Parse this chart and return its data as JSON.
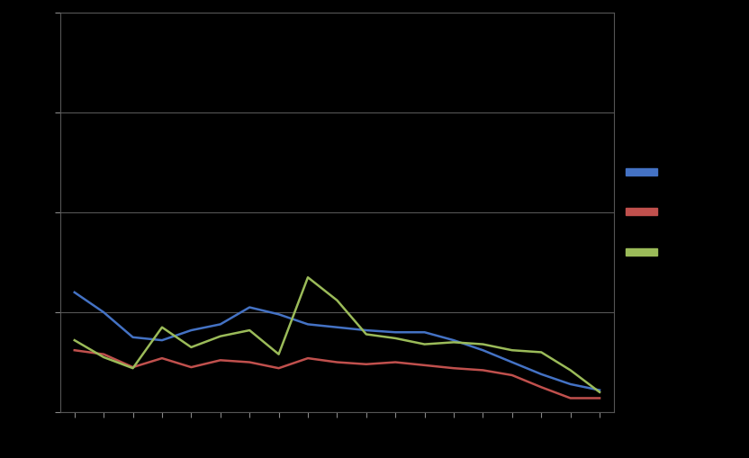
{
  "background_color": "#000000",
  "plot_bg_color": "#000000",
  "grid_color": "#555555",
  "line_blue": [
    1.2,
    1.0,
    0.75,
    0.72,
    0.82,
    0.88,
    1.05,
    0.98,
    0.88,
    0.85,
    0.82,
    0.8,
    0.8,
    0.72,
    0.62,
    0.5,
    0.38,
    0.28,
    0.22
  ],
  "line_red": [
    0.62,
    0.58,
    0.45,
    0.54,
    0.45,
    0.52,
    0.5,
    0.44,
    0.54,
    0.5,
    0.48,
    0.5,
    0.47,
    0.44,
    0.42,
    0.37,
    0.25,
    0.14,
    0.14
  ],
  "line_green": [
    0.72,
    0.55,
    0.44,
    0.85,
    0.65,
    0.76,
    0.82,
    0.58,
    1.35,
    1.12,
    0.78,
    0.74,
    0.68,
    0.7,
    0.68,
    0.62,
    0.6,
    0.42,
    0.2
  ],
  "color_blue": "#4472c4",
  "color_red": "#c0504d",
  "color_green": "#9bbb59",
  "n_points": 19,
  "ylim": [
    0,
    4
  ],
  "yticks": [
    0,
    1,
    2,
    3,
    4
  ],
  "spine_color": "#555555",
  "tick_color": "#888888",
  "figsize": [
    8.32,
    5.1
  ],
  "dpi": 100
}
